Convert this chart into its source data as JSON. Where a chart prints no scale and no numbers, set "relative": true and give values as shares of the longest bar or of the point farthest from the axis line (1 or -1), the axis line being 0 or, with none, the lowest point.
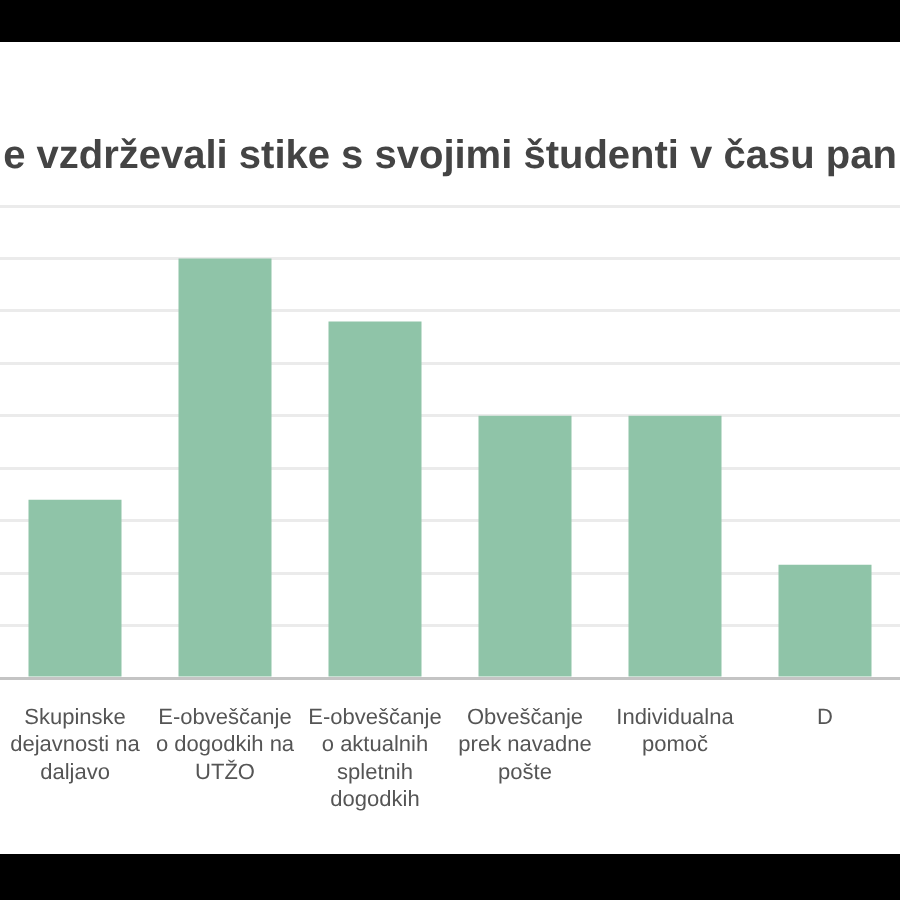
{
  "chart_data": {
    "type": "bar",
    "title": "e vzdrževali stike s svojimi študenti v času pan",
    "categories": [
      "Skupinske dejavnosti na daljavo",
      "E-obveščanje o dogodkih na UTŽO",
      "E-obveščanje o aktualnih spletnih dogodkih",
      "Obveščanje prek navadne pošte",
      "Individualna pomoč",
      "D"
    ],
    "values": [
      0.425,
      1,
      0.85,
      0.625,
      0.625,
      0.27
    ],
    "color": "#8fc4a8",
    "relative": true,
    "grid": true
  }
}
